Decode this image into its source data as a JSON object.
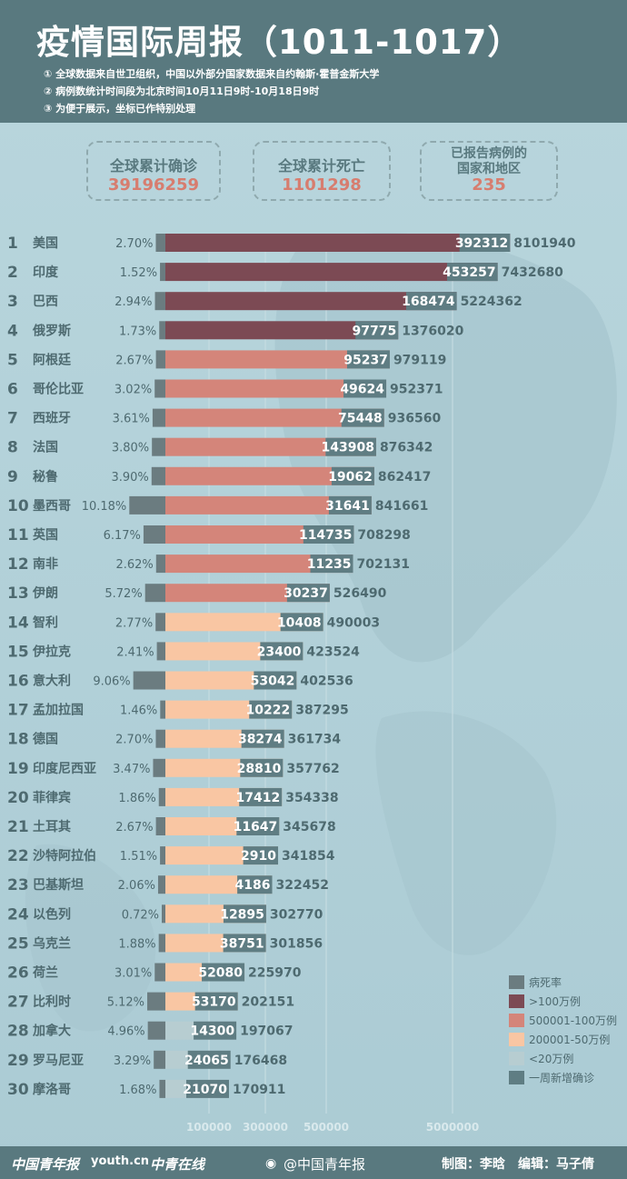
{
  "header": {
    "title": "疫情国际周报（1011-1017）",
    "notes": [
      "① 全球数据来自世卫组织，中国以外部分国家数据来自约翰斯·霍普金斯大学",
      "② 病例数统计时间段为北京时间10月11日9时-10月18日9时",
      "③ 为便于展示，坐标已作特别处理"
    ]
  },
  "stats": {
    "confirmed": {
      "label": "全球累计确诊",
      "value": "39196259"
    },
    "deaths": {
      "label": "全球累计死亡",
      "value": "1101298"
    },
    "countries": {
      "label_line1": "已报告病例的",
      "label_line2": "国家和地区",
      "value": "235"
    }
  },
  "colors": {
    "death_rate": "#6b7c80",
    "over_1m": "#7c4a54",
    "500k_1m": "#d4857a",
    "200k_500k": "#f9c6a3",
    "under_200k": "#b7cdd1",
    "weekly_new": "#5f7d83",
    "text": "#4e6a70"
  },
  "chart_data": {
    "type": "bar",
    "title": "",
    "x_ticks": [
      "100000",
      "300000",
      "500000",
      "5000000"
    ],
    "x_scale": "custom non-linear (为便于展示，坐标已作特别处理)",
    "series": [
      {
        "name": "病死率",
        "field": "death_rate"
      },
      {
        "name": "一周新增确诊",
        "field": "weekly_new"
      },
      {
        "name": "累计确诊",
        "field": "total"
      }
    ],
    "rows": [
      {
        "rank": 1,
        "country": "美国",
        "death_rate": "2.70%",
        "weekly_new": 392312,
        "total": 8101940,
        "band": "over_1m"
      },
      {
        "rank": 2,
        "country": "印度",
        "death_rate": "1.52%",
        "weekly_new": 453257,
        "total": 7432680,
        "band": "over_1m"
      },
      {
        "rank": 3,
        "country": "巴西",
        "death_rate": "2.94%",
        "weekly_new": 168474,
        "total": 5224362,
        "band": "over_1m"
      },
      {
        "rank": 4,
        "country": "俄罗斯",
        "death_rate": "1.73%",
        "weekly_new": 97775,
        "total": 1376020,
        "band": "over_1m"
      },
      {
        "rank": 5,
        "country": "阿根廷",
        "death_rate": "2.67%",
        "weekly_new": 95237,
        "total": 979119,
        "band": "500k_1m"
      },
      {
        "rank": 6,
        "country": "哥伦比亚",
        "death_rate": "3.02%",
        "weekly_new": 49624,
        "total": 952371,
        "band": "500k_1m"
      },
      {
        "rank": 7,
        "country": "西班牙",
        "death_rate": "3.61%",
        "weekly_new": 75448,
        "total": 936560,
        "band": "500k_1m"
      },
      {
        "rank": 8,
        "country": "法国",
        "death_rate": "3.80%",
        "weekly_new": 143908,
        "total": 876342,
        "band": "500k_1m"
      },
      {
        "rank": 9,
        "country": "秘鲁",
        "death_rate": "3.90%",
        "weekly_new": 19062,
        "total": 862417,
        "band": "500k_1m"
      },
      {
        "rank": 10,
        "country": "墨西哥",
        "death_rate": "10.18%",
        "weekly_new": 31641,
        "total": 841661,
        "band": "500k_1m"
      },
      {
        "rank": 11,
        "country": "英国",
        "death_rate": "6.17%",
        "weekly_new": 114735,
        "total": 708298,
        "band": "500k_1m"
      },
      {
        "rank": 12,
        "country": "南非",
        "death_rate": "2.62%",
        "weekly_new": 11235,
        "total": 702131,
        "band": "500k_1m"
      },
      {
        "rank": 13,
        "country": "伊朗",
        "death_rate": "5.72%",
        "weekly_new": 30237,
        "total": 526490,
        "band": "500k_1m"
      },
      {
        "rank": 14,
        "country": "智利",
        "death_rate": "2.77%",
        "weekly_new": 10408,
        "total": 490003,
        "band": "200k_500k"
      },
      {
        "rank": 15,
        "country": "伊拉克",
        "death_rate": "2.41%",
        "weekly_new": 23400,
        "total": 423524,
        "band": "200k_500k"
      },
      {
        "rank": 16,
        "country": "意大利",
        "death_rate": "9.06%",
        "weekly_new": 53042,
        "total": 402536,
        "band": "200k_500k"
      },
      {
        "rank": 17,
        "country": "孟加拉国",
        "death_rate": "1.46%",
        "weekly_new": 10222,
        "total": 387295,
        "band": "200k_500k"
      },
      {
        "rank": 18,
        "country": "德国",
        "death_rate": "2.70%",
        "weekly_new": 38274,
        "total": 361734,
        "band": "200k_500k"
      },
      {
        "rank": 19,
        "country": "印度尼西亚",
        "death_rate": "3.47%",
        "weekly_new": 28810,
        "total": 357762,
        "band": "200k_500k"
      },
      {
        "rank": 20,
        "country": "菲律宾",
        "death_rate": "1.86%",
        "weekly_new": 17412,
        "total": 354338,
        "band": "200k_500k"
      },
      {
        "rank": 21,
        "country": "土耳其",
        "death_rate": "2.67%",
        "weekly_new": 11647,
        "total": 345678,
        "band": "200k_500k"
      },
      {
        "rank": 22,
        "country": "沙特阿拉伯",
        "death_rate": "1.51%",
        "weekly_new": 2910,
        "total": 341854,
        "band": "200k_500k"
      },
      {
        "rank": 23,
        "country": "巴基斯坦",
        "death_rate": "2.06%",
        "weekly_new": 4186,
        "total": 322452,
        "band": "200k_500k"
      },
      {
        "rank": 24,
        "country": "以色列",
        "death_rate": "0.72%",
        "weekly_new": 12895,
        "total": 302770,
        "band": "200k_500k"
      },
      {
        "rank": 25,
        "country": "乌克兰",
        "death_rate": "1.88%",
        "weekly_new": 38751,
        "total": 301856,
        "band": "200k_500k"
      },
      {
        "rank": 26,
        "country": "荷兰",
        "death_rate": "3.01%",
        "weekly_new": 52080,
        "total": 225970,
        "band": "200k_500k"
      },
      {
        "rank": 27,
        "country": "比利时",
        "death_rate": "5.12%",
        "weekly_new": 53170,
        "total": 202151,
        "band": "200k_500k"
      },
      {
        "rank": 28,
        "country": "加拿大",
        "death_rate": "4.96%",
        "weekly_new": 14300,
        "total": 197067,
        "band": "under_200k"
      },
      {
        "rank": 29,
        "country": "罗马尼亚",
        "death_rate": "3.29%",
        "weekly_new": 24065,
        "total": 176468,
        "band": "under_200k"
      },
      {
        "rank": 30,
        "country": "摩洛哥",
        "death_rate": "1.68%",
        "weekly_new": 21070,
        "total": 170911,
        "band": "under_200k"
      }
    ]
  },
  "legend": [
    {
      "label": "病死率",
      "color_key": "death_rate"
    },
    {
      "label": ">100万例",
      "color_key": "over_1m"
    },
    {
      "label": "500001-100万例",
      "color_key": "500k_1m"
    },
    {
      "label": "200001-50万例",
      "color_key": "200k_500k"
    },
    {
      "label": "<20万例",
      "color_key": "under_200k"
    },
    {
      "label": "一周新增确诊",
      "color_key": "weekly_new"
    }
  ],
  "footer": {
    "logo1": "中国青年报",
    "logo2": "youth.cn",
    "logo3": "中青在线",
    "weibo": "@中国青年报",
    "credit": "制图：李晗　编辑：马子倩"
  }
}
